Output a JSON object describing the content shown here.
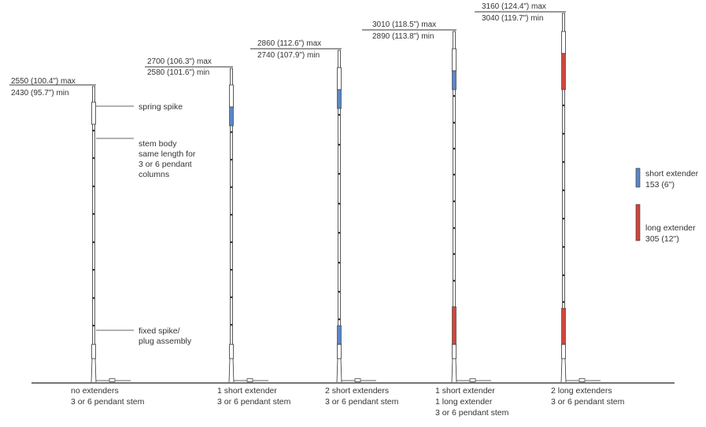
{
  "stems": [
    {
      "max_label": "2550 (100.4\") max",
      "min_label": "2430 (95.7\") min",
      "caption": [
        "no extenders",
        "3 or 6 pendant stem"
      ],
      "segments": []
    },
    {
      "max_label": "2700 (106.3\") max",
      "min_label": "2580 (101.6\") min",
      "caption": [
        "1 short extender",
        "3 or 6 pendant stem"
      ],
      "segments": [
        "short"
      ]
    },
    {
      "max_label": "2860 (112.6\") max",
      "min_label": "2740 (107.9\") min",
      "caption": [
        "2 short extenders",
        "3 or 6 pendant stem"
      ],
      "segments": [
        "short",
        "short"
      ]
    },
    {
      "max_label": "3010 (118.5\") max",
      "min_label": "2890 (113.8\") min",
      "caption": [
        "1 short extender",
        "1 long extender",
        "3 or 6 pendant stem"
      ],
      "segments": [
        "short",
        "long"
      ]
    },
    {
      "max_label": "3160 (124.4\") max",
      "min_label": "3040 (119.7\") min",
      "caption": [
        "2 long extenders",
        "3 or 6 pendant stem"
      ],
      "segments": [
        "long",
        "long"
      ]
    }
  ],
  "annotations": {
    "spring_spike": [
      "spring spike"
    ],
    "stem_body": [
      "stem body",
      "same length for",
      "3 or 6 pendant",
      "columns"
    ],
    "fixed_spike": [
      "fixed spike/",
      "plug assembly"
    ]
  },
  "legend": {
    "short": {
      "lines": [
        "short extender",
        "153 (6\")"
      ],
      "color": "#5b86c5"
    },
    "long": {
      "lines": [
        "long extender",
        "305 (12\")"
      ],
      "color": "#d0473b"
    }
  },
  "colors": {
    "stroke": "#333333",
    "ground": "#222222"
  }
}
